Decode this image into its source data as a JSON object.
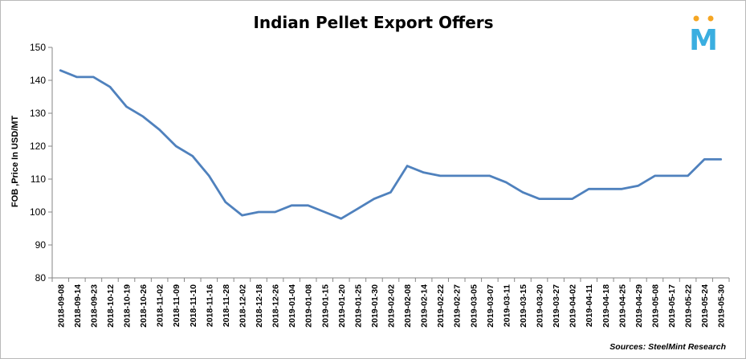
{
  "chart_data": {
    "type": "line",
    "title": "Indian Pellet Export Offers",
    "ylabel": "FOB ,Price In USD/MT",
    "xlabel": "",
    "ylim": [
      80,
      150
    ],
    "yticks": [
      80,
      90,
      100,
      110,
      120,
      130,
      140,
      150
    ],
    "grid": false,
    "legend": "none",
    "line_color": "#4f81bd",
    "categories": [
      "2018-09-08",
      "2018-09-14",
      "2018-09-23",
      "2018-10-12",
      "2018-10-19",
      "2018-10-26",
      "2018-11-02",
      "2018-11-09",
      "2018-11-10",
      "2018-11-16",
      "2018-11-28",
      "2018-12-02",
      "2018-12-18",
      "2018-12-26",
      "2019-01-04",
      "2019-01-08",
      "2019-01-15",
      "2019-01-20",
      "2019-01-25",
      "2019-01-30",
      "2019-02-02",
      "2019-02-08",
      "2019-02-14",
      "2019-02-22",
      "2019-02-27",
      "2019-03-05",
      "2019-03-07",
      "2019-03-11",
      "2019-03-15",
      "2019-03-20",
      "2019-03-27",
      "2019-04-02",
      "2019-04-11",
      "2019-04-18",
      "2019-04-25",
      "2019-04-29",
      "2019-05-08",
      "2019-05-17",
      "2019-05-22",
      "2019-05-24",
      "2019-05-30"
    ],
    "series": [
      {
        "values": [
          143,
          141,
          141,
          138,
          132,
          129,
          125,
          120,
          117,
          111,
          103,
          99,
          100,
          100,
          102,
          102,
          100,
          98,
          101,
          104,
          106,
          114,
          112,
          111,
          111,
          111,
          111,
          109,
          106,
          104,
          104,
          104,
          107,
          107,
          107,
          108,
          111,
          111,
          111,
          116,
          116
        ]
      }
    ],
    "source": "Sources: SteelMint Research"
  },
  "logo": {
    "text": "M",
    "color": "#3aaee0",
    "dot_color": "#f5a623"
  }
}
